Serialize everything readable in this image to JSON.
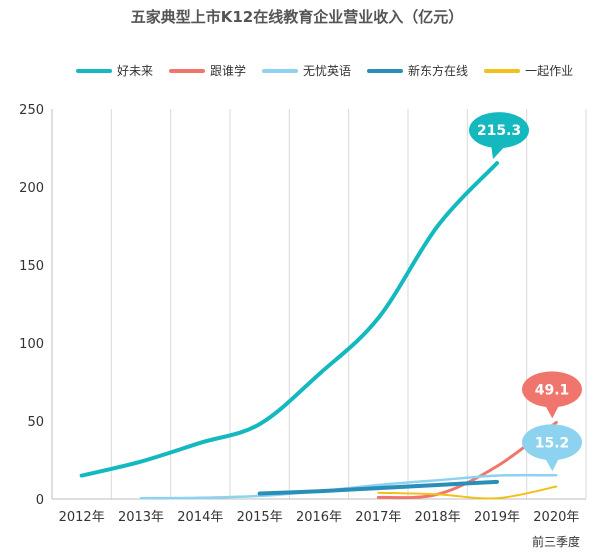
{
  "chart_data": {
    "type": "line",
    "title": "五家典型上市K12在线教育企业营业收入（亿元）",
    "x_note": "前三季度",
    "categories": [
      "2012年",
      "2013年",
      "2014年",
      "2015年",
      "2016年",
      "2017年",
      "2018年",
      "2019年",
      "2020年"
    ],
    "ylim": [
      0,
      250
    ],
    "yticks": [
      0,
      50,
      100,
      150,
      200,
      250
    ],
    "grid": "vertical",
    "legend_position": "top",
    "series": [
      {
        "name": "好未来",
        "color": "#14b9c0",
        "width": 4,
        "values": [
          15,
          24,
          36,
          48,
          80,
          116,
          175,
          215.3,
          null
        ]
      },
      {
        "name": "跟谁学",
        "color": "#f0766d",
        "width": 3,
        "values": [
          null,
          null,
          null,
          null,
          null,
          1,
          3,
          21,
          49.1
        ]
      },
      {
        "name": "无忧英语",
        "color": "#8dd3f0",
        "width": 2.5,
        "values": [
          null,
          0.5,
          0.8,
          2,
          5,
          9,
          12,
          15,
          15.2
        ]
      },
      {
        "name": "新东方在线",
        "color": "#2a8fb8",
        "width": 4,
        "values": [
          null,
          null,
          null,
          3.5,
          5,
          7,
          9,
          11,
          null
        ]
      },
      {
        "name": "一起作业",
        "color": "#f3c01a",
        "width": 2,
        "values": [
          null,
          null,
          null,
          null,
          null,
          4,
          3,
          0.5,
          8
        ]
      }
    ],
    "callouts": [
      {
        "series": "好未来",
        "label": "215.3",
        "x_index": 7,
        "y": 215.3,
        "color": "#14b9c0"
      },
      {
        "series": "跟谁学",
        "label": "49.1",
        "x_index": 8,
        "y": 49.1,
        "color": "#f0766d"
      },
      {
        "series": "无忧英语",
        "label": "15.2",
        "x_index": 8,
        "y": 15.2,
        "color": "#8dd3f0"
      }
    ]
  }
}
